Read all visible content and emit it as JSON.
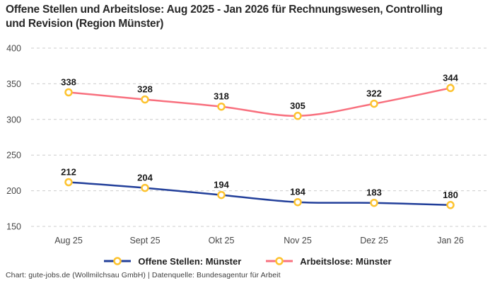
{
  "title": "Offene Stellen und Arbeitslose: Aug 2025 - Jan 2026 für Rechnungswesen, Controlling und Revision (Region Münster)",
  "footer": "Chart: gute-jobs.de (Wollmilchsau GmbH) | Datenquelle: Bundesagentur für Arbeit",
  "colors": {
    "open_positions_line": "#223F9A",
    "unemployed_line": "#F8707E",
    "marker_stroke": "#FDC32F",
    "marker_fill": "#FFFFFF",
    "gridline": "#CCCCCC",
    "axis_label": "#474747",
    "value_label": "#191919"
  },
  "chart_data": {
    "type": "line",
    "title": "Offene Stellen und Arbeitslose: Aug 2025 - Jan 2026 für Rechnungswesen, Controlling und Revision (Region Münster)",
    "categories": [
      "Aug 25",
      "Sept 25",
      "Okt 25",
      "Nov 25",
      "Dez 25",
      "Jan 26"
    ],
    "series": [
      {
        "name": "Offene Stellen: Münster",
        "values": [
          212,
          204,
          194,
          184,
          183,
          180
        ],
        "color": "#223F9A"
      },
      {
        "name": "Arbeitslose: Münster",
        "values": [
          338,
          328,
          318,
          305,
          322,
          344
        ],
        "color": "#F8707E"
      }
    ],
    "ylim": [
      150,
      400
    ],
    "yticks": [
      150,
      200,
      250,
      300,
      350,
      400
    ],
    "grid": "horizontal-dashed",
    "legend_position": "bottom",
    "point_labels": true,
    "marker": "gold-ring-circle"
  }
}
